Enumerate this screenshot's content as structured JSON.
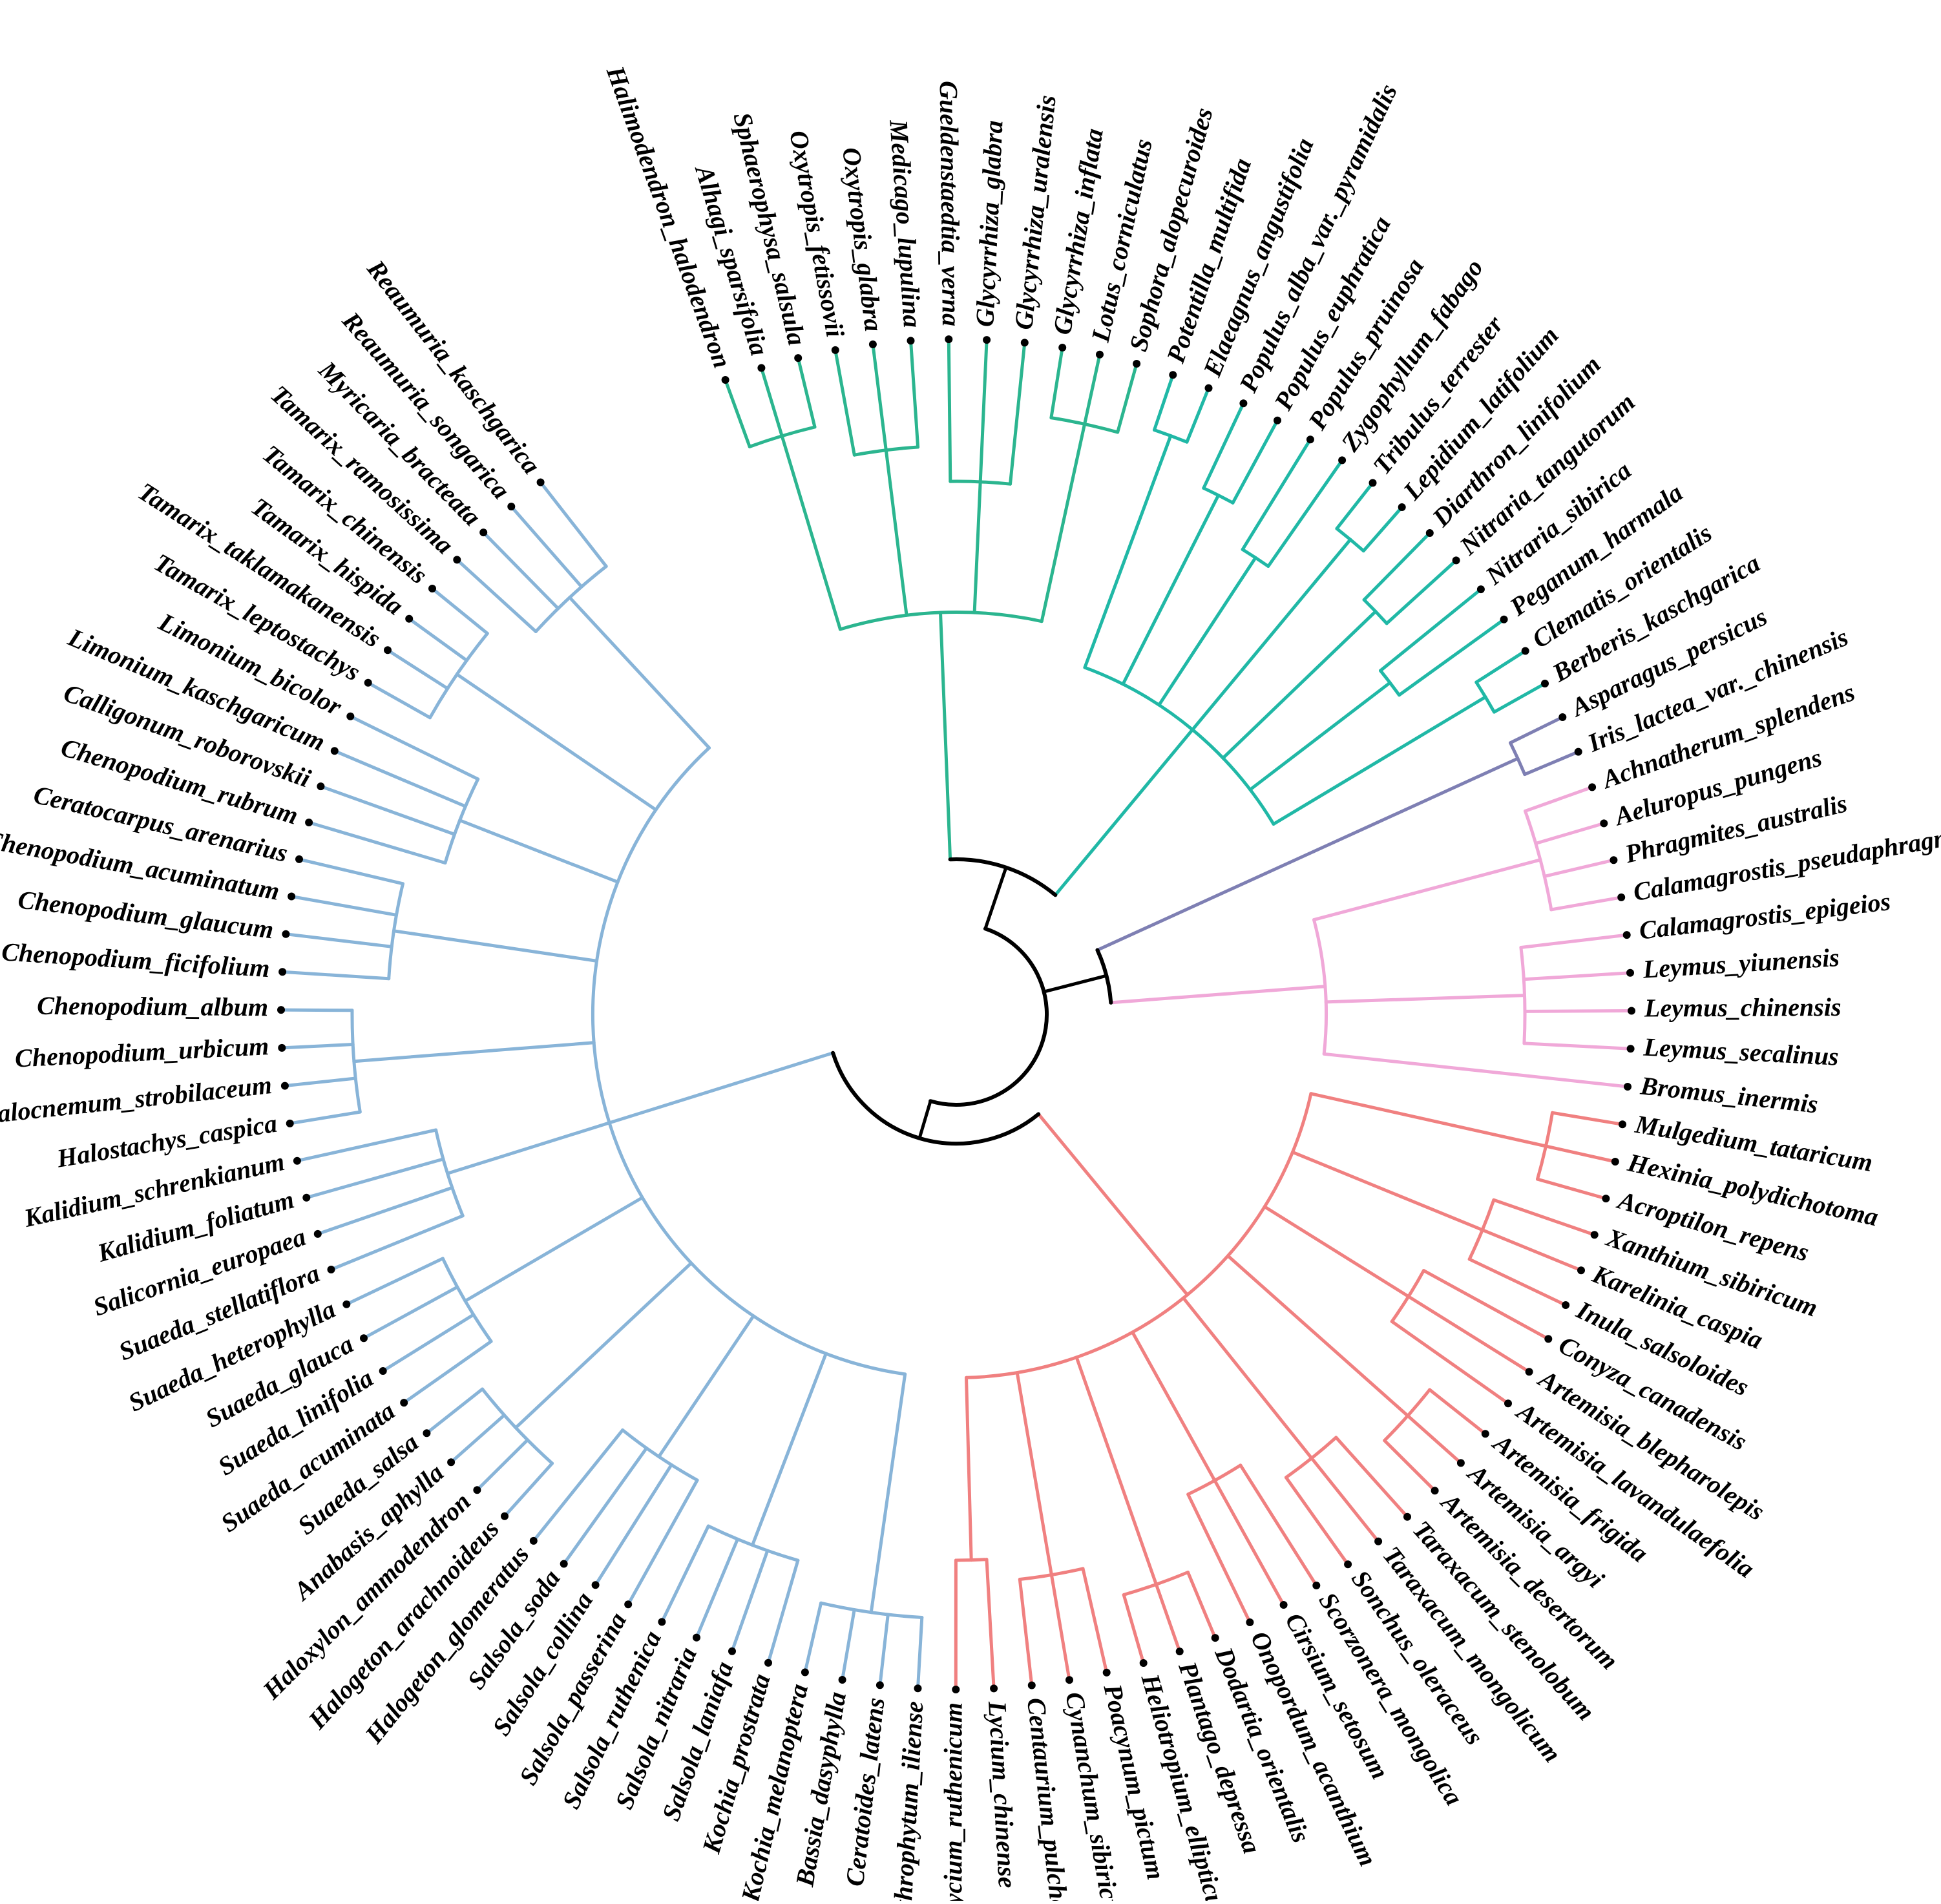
{
  "colors": {
    "root": "#000000",
    "fabales_clade": "#2bb58f",
    "sapindales_clade": "#20b8a6",
    "asparagales_clade": "#7e7fb3",
    "poales_clade": "#f0a8d8",
    "asterales_clade": "#f08080",
    "caryophyllales_clade": "#88b4d8",
    "tip_dot": "#000000",
    "label": "#000000"
  },
  "clades": [
    {
      "id": "fabales_clade",
      "tips": [
        "Halimodendron_halodendron",
        "Alhagi_sparsifolia",
        "Sphaerophysa_salsula",
        "Oxytropis_fetissovii",
        "Oxytropis_glabra",
        "Medicago_lupulina",
        "Gueldenstaedtia_verna",
        "Glycyrrhiza_glabra",
        "Glycyrrhiza_uralensis",
        "Glycyrrhiza_inflata",
        "Lotus_corniculatus",
        "Sophora_alopecuroides"
      ]
    },
    {
      "id": "sapindales_clade",
      "tips": [
        "Potentilla_multifida",
        "Elaeagnus_angustifolia",
        "Populus_alba_var._pyramidalis",
        "Populus_euphratica",
        "Populus_pruinosa",
        "Zygophyllum_fabago",
        "Tribulus_terrester",
        "Lepidium_latifolium",
        "Diarthron_linifolium",
        "Nitraria_tangutorum",
        "Nitraria_sibirica",
        "Peganum_harmala",
        "Clematis_orientalis",
        "Berberis_kaschgarica"
      ]
    },
    {
      "id": "asparagales_clade",
      "tips": [
        "Asparagus_persicus",
        "Iris_lactea_var._chinensis"
      ]
    },
    {
      "id": "poales_clade",
      "tips": [
        "Achnatherum_splendens",
        "Aeluropus_pungens",
        "Phragmites_australis",
        "Calamagrostis_pseudaphragmites",
        "Calamagrostis_epigeios",
        "Leymus_yiunensis",
        "Leymus_chinensis",
        "Leymus_secalinus",
        "Bromus_inermis"
      ]
    },
    {
      "id": "asterales_clade",
      "tips": [
        "Mulgedium_tataricum",
        "Hexinia_polydichotoma",
        "Acroptilon_repens",
        "Xanthium_sibiricum",
        "Karelinia_caspia",
        "Inula_salsoloides",
        "Conyza_canadensis",
        "Artemisia_blepharolepis",
        "Artemisia_lavandulaefolia",
        "Artemisia_frigida",
        "Artemisia_argyi",
        "Artemisia_desertorum",
        "Taraxacum_stenolobum",
        "Taraxacum_mongolicum",
        "Sonchus_oleraceus",
        "Scorzonera_mongolica",
        "Cirsium_setosum",
        "Onopordum_acanthium",
        "Dodartia_orientalis",
        "Plantago_depressa",
        "Heliotropium_ellipticum",
        "Poacynum_pictum",
        "Cynanchum_sibiricum",
        "Centaurium_pulchellum",
        "Lycium_chinense",
        "Lycium_ruthenicum"
      ]
    },
    {
      "id": "caryophyllales_clade",
      "tips": [
        "Arthrophytum_iliense",
        "Ceratoides_latens",
        "Bassia_dasyphylla",
        "Kochia_melanoptera",
        "Kochia_prostrata",
        "Salsola_laniafa",
        "Salsola_nitraria",
        "Salsola_ruthenica",
        "Salsola_passerina",
        "Salsola_collina",
        "Salsola_soda",
        "Halogeton_glomeratus",
        "Halogeton_arachnoideus",
        "Haloxylon_ammodendron",
        "Anabasis_aphylla",
        "Suaeda_salsa",
        "Suaeda_acuminata",
        "Suaeda_linifolia",
        "Suaeda_glauca",
        "Suaeda_heterophylla",
        "Suaeda_stellatiflora",
        "Salicornia_europaea",
        "Kalidium_foliatum",
        "Kalidium_schrenkianum",
        "Halostachys_caspica",
        "Halocnemum_strobilaceum",
        "Chenopodium_urbicum",
        "Chenopodium_album",
        "Chenopodium_ficifolium",
        "Chenopodium_glaucum",
        "Chenopodium_acuminatum",
        "Ceratocarpus_arenarius",
        "Chenopodium_rubrum",
        "Calligonum_roborovskii",
        "Limonium_kaschgaricum",
        "Limonium_bicolor",
        "Tamarix_leptostachys",
        "Tamarix_taklamakanensis",
        "Tamarix_hispida",
        "Tamarix_chinensis",
        "Tamarix_ramosissima",
        "Myricaria_bracteata",
        "Reaumuria_songarica",
        "Reaumuria_kaschgarica"
      ]
    }
  ]
}
